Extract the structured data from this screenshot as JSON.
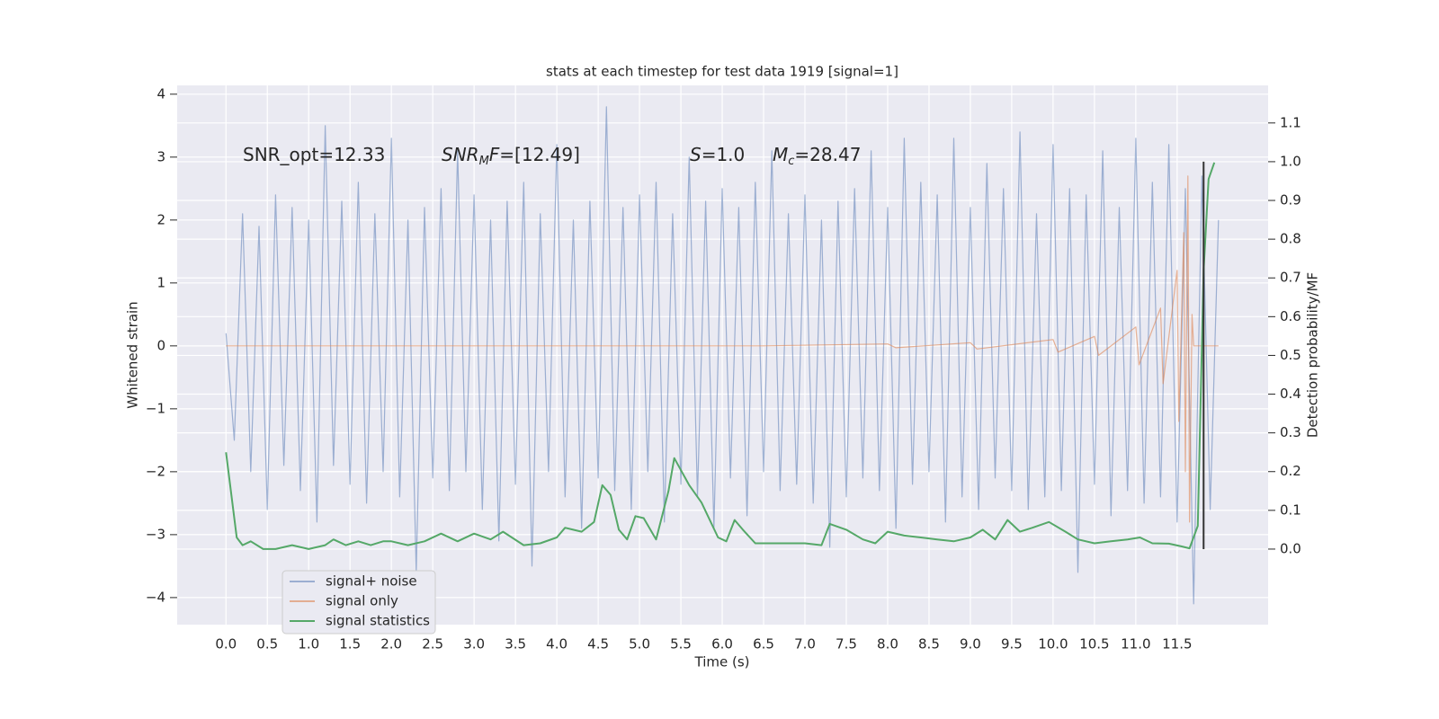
{
  "chart_data": {
    "type": "line",
    "title": "stats at each timestep for test data 1919 [signal=1]",
    "xlabel": "Time (s)",
    "ylabel": "Whitened strain",
    "y2label": "Detection probability/MF",
    "xlim": [
      -0.59,
      12.6
    ],
    "ylim": [
      -4.43,
      4.14
    ],
    "y2lim": [
      -0.195,
      1.197
    ],
    "xticks": [
      {
        "value": 0,
        "label": "0.0"
      },
      0.5,
      {
        "value": 1,
        "label": "1.0"
      },
      1.5,
      {
        "value": 2,
        "label": "2.0"
      },
      2.5,
      {
        "value": 3,
        "label": "3.0"
      },
      3.5,
      {
        "value": 4,
        "label": "4.0"
      },
      4.5,
      {
        "value": 5,
        "label": "5.0"
      },
      5.5,
      {
        "value": 6,
        "label": "6.0"
      },
      6.5,
      {
        "value": 7,
        "label": "7.0"
      },
      7.5,
      {
        "value": 8,
        "label": "8.0"
      },
      8.5,
      {
        "value": 9,
        "label": "9.0"
      },
      9.5,
      {
        "value": 10,
        "label": "10.0"
      },
      10.5,
      {
        "value": 11,
        "label": "11.0"
      },
      11.5
    ],
    "yticks": [
      {
        "value": -4,
        "label": "−4"
      },
      {
        "value": -3,
        "label": "−3"
      },
      {
        "value": -2,
        "label": "−2"
      },
      {
        "value": -1,
        "label": "−1"
      },
      0,
      1,
      2,
      3,
      4
    ],
    "y2ticks": [
      {
        "value": 0,
        "label": "0.0"
      },
      0.1,
      0.2,
      0.3,
      0.4,
      0.5,
      0.6,
      0.7,
      0.8,
      0.9,
      {
        "value": 1,
        "label": "1.0"
      },
      1.1
    ],
    "grid": true,
    "legend": "lower left",
    "annotations": [
      [
        {
          "text": "SNR_opt=12.33",
          "style": "normal"
        }
      ],
      [
        {
          "text": "SNR",
          "style": "italic"
        },
        {
          "text": "M",
          "style": "sub"
        },
        {
          "text": "F",
          "style": "italic"
        },
        {
          "text": "=[12.49]",
          "style": "normal"
        }
      ],
      [
        {
          "text": "S",
          "style": "italic"
        },
        {
          "text": "=1.0",
          "style": "normal"
        }
      ],
      [
        {
          "text": "M",
          "style": "italic"
        },
        {
          "text": "c",
          "style": "sub"
        },
        {
          "text": "=28.47",
          "style": "normal"
        }
      ]
    ],
    "vline": {
      "x": 11.82,
      "y2": [
        0,
        1
      ],
      "color": "#333333"
    },
    "series": [
      {
        "name": "signal+ noise",
        "color": "#4c72b0",
        "opacity": 0.5,
        "x": [
          0,
          0.1,
          0.2,
          0.3,
          0.4,
          0.5,
          0.6,
          0.7,
          0.8,
          0.9,
          1,
          1.1,
          1.2,
          1.3,
          1.4,
          1.5,
          1.6,
          1.7,
          1.8,
          1.9,
          2,
          2.1,
          2.2,
          2.3,
          2.4,
          2.5,
          2.6,
          2.7,
          2.8,
          2.9,
          3,
          3.1,
          3.2,
          3.3,
          3.4,
          3.5,
          3.6,
          3.7,
          3.8,
          3.9,
          4,
          4.1,
          4.2,
          4.3,
          4.4,
          4.5,
          4.6,
          4.7,
          4.8,
          4.9,
          5,
          5.1,
          5.2,
          5.3,
          5.4,
          5.5,
          5.6,
          5.7,
          5.8,
          5.9,
          6,
          6.1,
          6.2,
          6.3,
          6.4,
          6.5,
          6.6,
          6.7,
          6.8,
          6.9,
          7,
          7.1,
          7.2,
          7.3,
          7.4,
          7.5,
          7.6,
          7.7,
          7.8,
          7.9,
          8,
          8.1,
          8.2,
          8.3,
          8.4,
          8.5,
          8.6,
          8.7,
          8.8,
          8.9,
          9,
          9.1,
          9.2,
          9.3,
          9.4,
          9.5,
          9.6,
          9.7,
          9.8,
          9.9,
          10,
          10.1,
          10.2,
          10.3,
          10.4,
          10.5,
          10.6,
          10.7,
          10.8,
          10.9,
          11,
          11.1,
          11.2,
          11.3,
          11.4,
          11.5,
          11.6,
          11.7,
          11.8,
          11.9,
          12
        ],
        "values": [
          0.2,
          -1.5,
          2.1,
          -2.0,
          1.9,
          -2.6,
          2.4,
          -1.9,
          2.2,
          -2.3,
          2.0,
          -2.8,
          3.5,
          -1.9,
          2.3,
          -2.2,
          2.6,
          -2.5,
          2.1,
          -2.0,
          3.3,
          -2.4,
          2.0,
          -3.6,
          2.2,
          -2.1,
          2.5,
          -2.3,
          3.1,
          -2.0,
          2.4,
          -2.6,
          2.0,
          -3.1,
          2.3,
          -2.2,
          2.6,
          -3.5,
          2.1,
          -2.0,
          3.2,
          -2.4,
          2.0,
          -2.9,
          2.3,
          -2.1,
          3.8,
          -2.3,
          2.2,
          -2.6,
          2.4,
          -2.0,
          2.6,
          -2.8,
          2.1,
          -2.2,
          3.0,
          -2.4,
          2.3,
          -2.9,
          2.5,
          -2.1,
          2.2,
          -2.7,
          2.6,
          -2.0,
          3.1,
          -2.3,
          2.1,
          -2.2,
          2.4,
          -2.5,
          2.0,
          -3.2,
          2.3,
          -2.4,
          2.5,
          -2.1,
          3.1,
          -2.3,
          2.2,
          -2.9,
          3.3,
          -2.2,
          2.6,
          -2.0,
          2.4,
          -2.8,
          3.3,
          -2.4,
          2.2,
          -2.6,
          2.9,
          -2.1,
          2.5,
          -2.3,
          3.4,
          -2.6,
          2.1,
          -2.4,
          3.2,
          -2.3,
          2.5,
          -3.6,
          2.4,
          -2.2,
          3.1,
          -2.7,
          2.2,
          -2.3,
          3.3,
          -2.5,
          2.6,
          -2.4,
          3.2,
          -2.8,
          2.5,
          -4.1,
          2.7,
          -2.6,
          2.0
        ]
      },
      {
        "name": "signal only",
        "color": "#dd8452",
        "opacity": 0.6,
        "x": [
          0,
          6.5,
          8.0,
          8.1,
          9.0,
          9.08,
          10.0,
          10.06,
          10.5,
          10.55,
          11.0,
          11.04,
          11.3,
          11.33,
          11.5,
          11.52,
          11.58,
          11.6,
          11.63,
          11.65,
          11.68,
          11.7,
          12.0
        ],
        "values": [
          0,
          0,
          0.03,
          -0.03,
          0.05,
          -0.05,
          0.1,
          -0.1,
          0.15,
          -0.15,
          0.3,
          -0.3,
          0.6,
          -0.6,
          1.2,
          -1.2,
          1.8,
          -2.0,
          2.7,
          -2.8,
          0.5,
          0,
          0
        ]
      },
      {
        "name": "signal statistics",
        "color": "#55a868",
        "opacity": 1,
        "axis": "y2",
        "x": [
          0,
          0.13,
          0.2,
          0.3,
          0.45,
          0.6,
          0.8,
          1.0,
          1.2,
          1.3,
          1.45,
          1.6,
          1.75,
          1.9,
          2.0,
          2.2,
          2.4,
          2.6,
          2.8,
          3.0,
          3.2,
          3.35,
          3.6,
          3.8,
          4.0,
          4.1,
          4.3,
          4.45,
          4.55,
          4.65,
          4.75,
          4.85,
          4.95,
          5.05,
          5.2,
          5.35,
          5.42,
          5.6,
          5.75,
          5.95,
          6.05,
          6.15,
          6.25,
          6.4,
          6.6,
          7.0,
          7.2,
          7.3,
          7.5,
          7.7,
          7.85,
          8.0,
          8.2,
          8.4,
          8.6,
          8.8,
          9.0,
          9.15,
          9.3,
          9.45,
          9.6,
          9.75,
          9.95,
          10.15,
          10.3,
          10.5,
          10.7,
          10.9,
          11.05,
          11.2,
          11.4,
          11.55,
          11.65,
          11.75,
          11.82,
          11.88,
          11.95
        ],
        "values": [
          0.25,
          0.03,
          0.01,
          0.02,
          0.0,
          0.0,
          0.01,
          0.0,
          0.01,
          0.025,
          0.01,
          0.02,
          0.01,
          0.02,
          0.02,
          0.01,
          0.02,
          0.04,
          0.02,
          0.04,
          0.025,
          0.045,
          0.01,
          0.015,
          0.03,
          0.055,
          0.045,
          0.07,
          0.165,
          0.14,
          0.05,
          0.025,
          0.085,
          0.08,
          0.025,
          0.15,
          0.235,
          0.165,
          0.12,
          0.03,
          0.02,
          0.075,
          0.05,
          0.015,
          0.015,
          0.015,
          0.01,
          0.065,
          0.05,
          0.025,
          0.015,
          0.045,
          0.035,
          0.03,
          0.025,
          0.02,
          0.03,
          0.05,
          0.025,
          0.075,
          0.045,
          0.055,
          0.07,
          0.045,
          0.025,
          0.015,
          0.02,
          0.025,
          0.03,
          0.015,
          0.014,
          0.007,
          0.002,
          0.06,
          0.72,
          0.955,
          0.998
        ]
      }
    ]
  }
}
